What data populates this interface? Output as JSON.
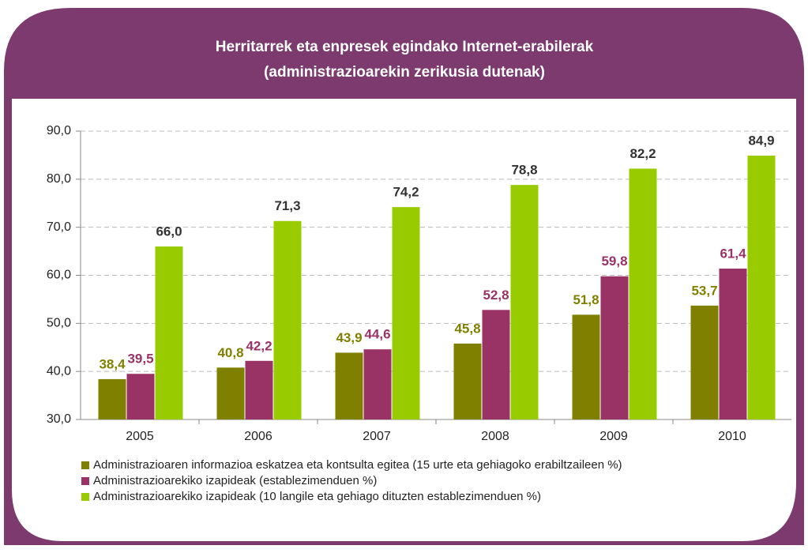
{
  "chart_data": {
    "type": "bar",
    "title_lines": [
      "Herritarrek eta enpresek egindako Internet-erabilerak",
      "(administrazioarekin zerikusia dutenak)"
    ],
    "categories": [
      "2005",
      "2006",
      "2007",
      "2008",
      "2009",
      "2010"
    ],
    "series": [
      {
        "name": "Administrazioaren informazioa eskatzea eta kontsulta egitea (15 urte eta gehiagoko erabiltzaileen %)",
        "color": "#808000",
        "label_color": "#808000",
        "values": [
          38.4,
          40.8,
          43.9,
          45.8,
          51.8,
          53.7
        ],
        "value_labels": [
          "38,4",
          "40,8",
          "43,9",
          "45,8",
          "51,8",
          "53,7"
        ]
      },
      {
        "name": "Administrazioarekiko izapideak (establezimenduen %)",
        "color": "#993366",
        "label_color": "#993366",
        "values": [
          39.5,
          42.2,
          44.6,
          52.8,
          59.8,
          61.4
        ],
        "value_labels": [
          "39,5",
          "42,2",
          "44,6",
          "52,8",
          "59,8",
          "61,4"
        ]
      },
      {
        "name": "Administrazioarekiko izapideak (10 langile eta gehiago dituzten establezimenduen %)",
        "color": "#99cc00",
        "label_color": "#333333",
        "values": [
          66.0,
          71.3,
          74.2,
          78.8,
          82.2,
          84.9
        ],
        "value_labels": [
          "66,0",
          "71,3",
          "74,2",
          "78,8",
          "82,2",
          "84,9"
        ]
      }
    ],
    "ylim": [
      30,
      90
    ],
    "yticks": [
      {
        "value": 30,
        "label": "30,0"
      },
      {
        "value": 40,
        "label": "40,0"
      },
      {
        "value": 50,
        "label": "50,0"
      },
      {
        "value": 60,
        "label": "60,0"
      },
      {
        "value": 70,
        "label": "70,0"
      },
      {
        "value": 80,
        "label": "80,0"
      },
      {
        "value": 90,
        "label": "90,0"
      }
    ],
    "grid": true
  }
}
